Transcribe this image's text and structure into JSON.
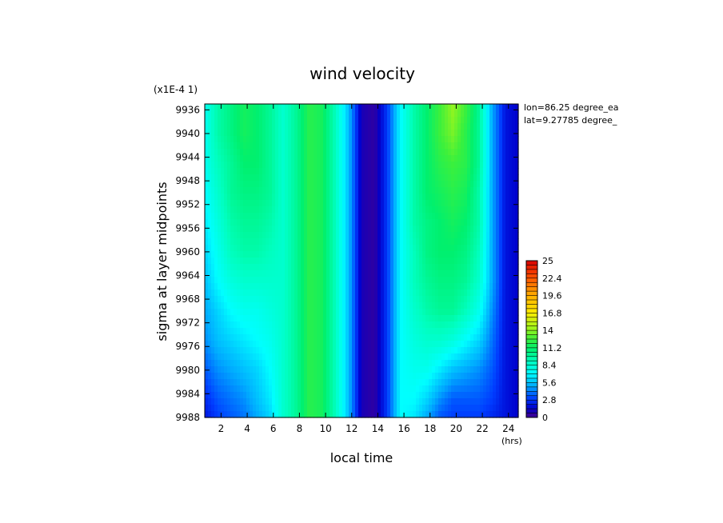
{
  "chart_data": {
    "type": "heatmap",
    "title": "wind velocity",
    "xlabel": "local time",
    "x_unit": "(hrs)",
    "ylabel": "sigma at layer midpoints",
    "y_scale_note": "(x1E-4 1)",
    "annotations": [
      "lon=86.25 degree_ea",
      "lat=9.27785 degree_"
    ],
    "x_range": [
      0.75,
      24.75
    ],
    "x_ticks": [
      2,
      4,
      6,
      8,
      10,
      12,
      14,
      16,
      18,
      20,
      22,
      24
    ],
    "y_range": [
      9935,
      9988
    ],
    "y_ticks": [
      9936,
      9940,
      9944,
      9948,
      9952,
      9956,
      9960,
      9964,
      9968,
      9972,
      9976,
      9980,
      9984,
      9988
    ],
    "y_direction": "increasing-downward",
    "colorbar": {
      "min": 0,
      "max": 25,
      "tick_labels": [
        "0",
        "2.8",
        "5.6",
        "8.4",
        "11.2",
        "14",
        "16.8",
        "19.6",
        "22.4",
        "25"
      ]
    },
    "x": [
      0.75,
      1.75,
      2.75,
      3.75,
      4.75,
      5.75,
      6.75,
      7.75,
      8.75,
      9.75,
      10.75,
      11.75,
      12.75,
      13.75,
      14.75,
      15.75,
      16.75,
      17.75,
      18.75,
      19.75,
      20.75,
      21.75,
      22.75,
      23.75,
      24.75
    ],
    "y": [
      9935,
      9940,
      9945,
      9950,
      9955,
      9960,
      9965,
      9970,
      9975,
      9980,
      9985,
      9988
    ],
    "values": [
      [
        7.5,
        9.5,
        10.5,
        11.5,
        11.0,
        10.0,
        8.5,
        10.0,
        12.0,
        11.5,
        9.0,
        5.5,
        1.0,
        0.5,
        3.0,
        7.0,
        9.5,
        11.0,
        12.5,
        14.0,
        12.5,
        10.0,
        5.0,
        2.0,
        1.5
      ],
      [
        7.5,
        9.5,
        10.5,
        11.5,
        11.0,
        10.0,
        8.5,
        10.0,
        12.0,
        11.5,
        9.0,
        5.5,
        1.0,
        0.5,
        3.0,
        7.0,
        9.5,
        11.0,
        12.5,
        13.5,
        12.0,
        10.0,
        5.0,
        2.0,
        1.5
      ],
      [
        7.5,
        9.0,
        10.0,
        11.0,
        11.0,
        10.0,
        8.5,
        10.0,
        12.0,
        11.5,
        9.0,
        5.5,
        1.0,
        0.5,
        3.0,
        7.0,
        9.5,
        11.0,
        12.0,
        12.5,
        12.0,
        10.0,
        5.0,
        2.0,
        1.5
      ],
      [
        7.0,
        8.5,
        10.0,
        10.5,
        10.5,
        10.0,
        8.5,
        10.0,
        12.0,
        11.5,
        9.0,
        5.5,
        1.0,
        0.5,
        3.0,
        7.0,
        9.5,
        11.0,
        11.5,
        12.0,
        11.5,
        9.5,
        5.0,
        2.0,
        1.5
      ],
      [
        6.5,
        8.0,
        9.5,
        10.0,
        10.0,
        9.5,
        8.5,
        10.0,
        12.0,
        11.5,
        9.0,
        5.5,
        1.0,
        0.5,
        3.0,
        7.0,
        9.5,
        10.5,
        11.0,
        11.5,
        11.0,
        9.5,
        5.0,
        2.0,
        1.5
      ],
      [
        6.0,
        7.5,
        9.0,
        9.5,
        9.5,
        9.0,
        8.5,
        10.0,
        12.0,
        11.5,
        9.0,
        5.5,
        1.0,
        0.5,
        3.0,
        7.0,
        9.0,
        10.5,
        11.0,
        11.0,
        10.5,
        9.0,
        5.0,
        2.0,
        1.5
      ],
      [
        5.5,
        7.0,
        8.0,
        8.5,
        8.5,
        8.5,
        8.5,
        10.0,
        12.0,
        11.5,
        9.0,
        5.5,
        1.0,
        0.5,
        3.0,
        7.0,
        9.0,
        10.0,
        10.5,
        10.5,
        10.0,
        8.5,
        5.0,
        2.0,
        1.5
      ],
      [
        5.0,
        6.0,
        7.0,
        7.5,
        7.5,
        8.0,
        8.5,
        10.0,
        12.0,
        11.5,
        9.0,
        5.5,
        1.0,
        0.5,
        3.0,
        7.0,
        8.5,
        9.5,
        10.0,
        10.0,
        9.0,
        7.5,
        4.5,
        2.0,
        1.5
      ],
      [
        4.5,
        5.5,
        6.0,
        6.5,
        7.0,
        7.5,
        8.5,
        10.0,
        12.0,
        11.5,
        9.0,
        5.5,
        1.0,
        0.5,
        3.0,
        7.0,
        8.0,
        8.5,
        8.5,
        8.0,
        7.0,
        6.0,
        4.0,
        2.0,
        1.5
      ],
      [
        3.5,
        4.5,
        5.0,
        5.5,
        6.0,
        7.0,
        8.5,
        10.0,
        12.0,
        11.5,
        9.0,
        5.5,
        1.0,
        0.5,
        3.0,
        7.0,
        7.5,
        7.5,
        6.5,
        5.5,
        5.0,
        4.5,
        3.5,
        2.0,
        1.5
      ],
      [
        2.5,
        3.5,
        4.0,
        4.5,
        5.5,
        6.5,
        8.5,
        10.0,
        12.0,
        11.5,
        9.0,
        5.5,
        1.0,
        0.5,
        3.0,
        7.0,
        7.0,
        6.0,
        4.5,
        3.5,
        3.5,
        3.5,
        3.0,
        2.0,
        1.5
      ],
      [
        2.0,
        3.0,
        3.5,
        4.0,
        5.0,
        6.0,
        8.5,
        10.0,
        12.0,
        11.5,
        9.0,
        5.5,
        1.0,
        0.5,
        3.0,
        7.0,
        6.5,
        5.0,
        3.5,
        3.0,
        3.0,
        3.0,
        2.5,
        2.0,
        1.5
      ]
    ]
  }
}
